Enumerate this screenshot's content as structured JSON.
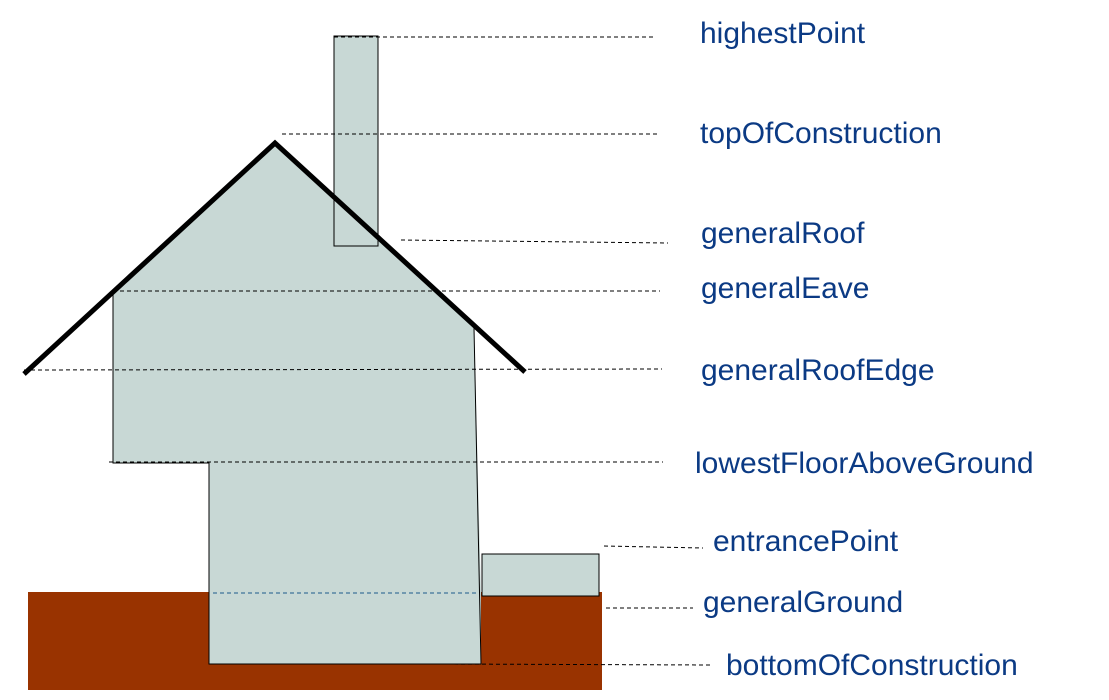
{
  "colors": {
    "building": "#c8d8d5",
    "ground": "#993300",
    "roof_line": "#000000",
    "label": "#0b3a84"
  },
  "labels": {
    "highest_point": "highestPoint",
    "top_of_construction": "topOfConstruction",
    "general_roof": "generalRoof",
    "general_eave": "generalEave",
    "general_roof_edge": "generalRoofEdge",
    "lowest_floor_above_ground": "lowestFloorAboveGround",
    "entrance_point": "entrancePoint",
    "general_ground": "generalGround",
    "bottom_of_construction": "bottomOfConstruction"
  }
}
